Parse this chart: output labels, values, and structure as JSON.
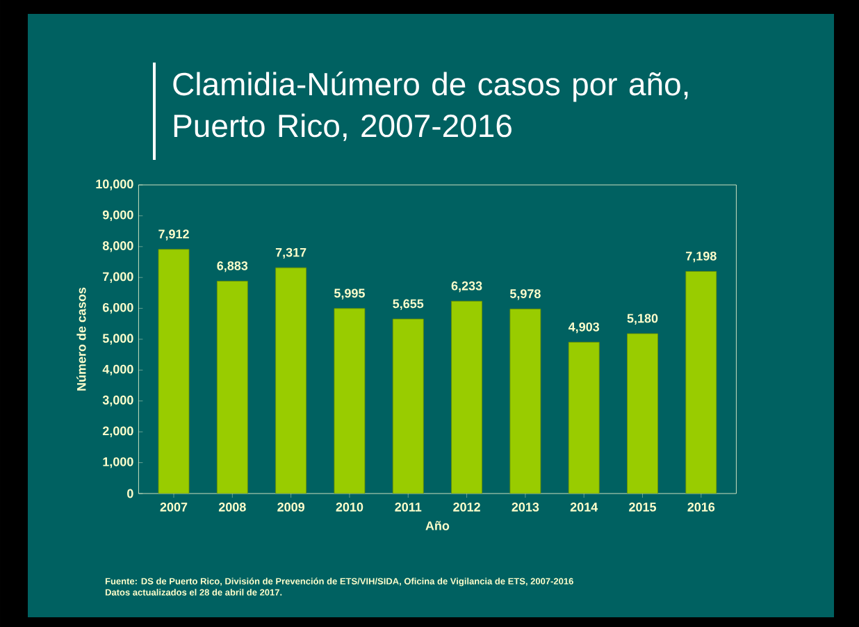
{
  "chart_data": {
    "type": "bar",
    "title": "Clamidia-Número de casos por año,\nPuerto Rico, 2007-2016",
    "xlabel": "Año",
    "ylabel": "Número de casos",
    "categories": [
      "2007",
      "2008",
      "2009",
      "2010",
      "2011",
      "2012",
      "2013",
      "2014",
      "2015",
      "2016"
    ],
    "values": [
      7912,
      6883,
      7317,
      5995,
      5655,
      6233,
      5978,
      4903,
      5180,
      7198
    ],
    "value_labels": [
      "7,912",
      "6,883",
      "7,317",
      "5,995",
      "5,655",
      "6,233",
      "5,978",
      "4,903",
      "5,180",
      "7,198"
    ],
    "color": "#99cc00",
    "ylim": [
      0,
      10000
    ],
    "yticks": [
      {
        "value": 0,
        "label": "0"
      },
      {
        "value": 1000,
        "label": "1,000"
      },
      {
        "value": 2000,
        "label": "2,000"
      },
      {
        "value": 3000,
        "label": "3,000"
      },
      {
        "value": 4000,
        "label": "4,000"
      },
      {
        "value": 5000,
        "label": "5,000"
      },
      {
        "value": 6000,
        "label": "6,000"
      },
      {
        "value": 7000,
        "label": "7,000"
      },
      {
        "value": 8000,
        "label": "8,000"
      },
      {
        "value": 9000,
        "label": "9,000"
      },
      {
        "value": 10000,
        "label": "10,000"
      }
    ],
    "grid": false,
    "annotations": [
      "Fuente: DS de Puerto Rico, División de Prevención de ETS/VIH/SIDA, Oficina de Vigilancia de ETS, 2007-2016",
      "Datos actualizados el 28 de abril de 2017."
    ]
  }
}
